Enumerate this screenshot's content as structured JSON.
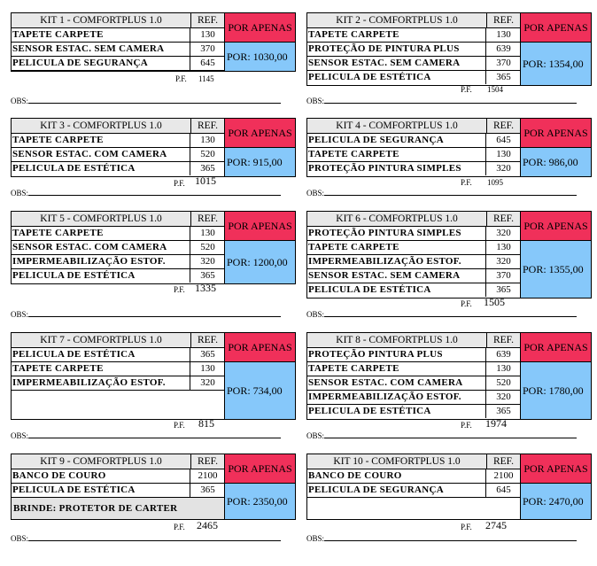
{
  "kits": [
    {
      "title": "KIT 1 -  COMFORTPLUS 1.0",
      "ref_header": "REF.",
      "badge": "POR APENAS",
      "items": [
        {
          "name": "TAPETE CARPETE",
          "ref": "130"
        },
        {
          "name": "SENSOR ESTAC. SEM CAMERA",
          "ref": "370"
        },
        {
          "name": "PELICULA DE SEGURANÇA",
          "ref": "645"
        }
      ],
      "price": "POR:  1030,00",
      "pf_label": "P.F.",
      "pf_value": "1145",
      "obs_label": "OBS:"
    },
    {
      "title": "KIT 2 -  COMFORTPLUS 1.0",
      "ref_header": "REF.",
      "badge": "POR APENAS",
      "items": [
        {
          "name": "TAPETE CARPETE",
          "ref": "130"
        },
        {
          "name": "PROTEÇÃO DE PINTURA PLUS",
          "ref": "639"
        },
        {
          "name": "SENSOR ESTAC. SEM CAMERA",
          "ref": "370"
        },
        {
          "name": "PELICULA DE ESTÉTICA",
          "ref": "365"
        }
      ],
      "price": "POR:  1354,00",
      "pf_label": "P.F.",
      "pf_value": "1504",
      "obs_label": "OBS:"
    },
    {
      "title": "KIT 3 -  COMFORTPLUS 1.0",
      "ref_header": "REF.",
      "badge": "POR APENAS",
      "items": [
        {
          "name": "TAPETE CARPETE",
          "ref": "130"
        },
        {
          "name": "SENSOR ESTAC. COM CAMERA",
          "ref": "520"
        },
        {
          "name": "PELICULA DE ESTÉTICA",
          "ref": "365"
        }
      ],
      "price": "POR:  915,00",
      "pf_label": "P.F.",
      "pf_value": "1015",
      "obs_label": "OBS:"
    },
    {
      "title": "KIT 4 -  COMFORTPLUS 1.0",
      "ref_header": "REF.",
      "badge": "POR APENAS",
      "items": [
        {
          "name": "PELICULA DE SEGURANÇA",
          "ref": "645"
        },
        {
          "name": "TAPETE CARPETE",
          "ref": "130"
        },
        {
          "name": "PROTEÇÃO PINTURA SIMPLES",
          "ref": "320"
        }
      ],
      "price": "POR:  986,00",
      "pf_label": "P.F.",
      "pf_value": "1095",
      "obs_label": "OBS:"
    },
    {
      "title": "KIT 5 -  COMFORTPLUS 1.0",
      "ref_header": "REF.",
      "badge": "POR APENAS",
      "items": [
        {
          "name": "TAPETE CARPETE",
          "ref": "130"
        },
        {
          "name": "SENSOR ESTAC. COM CAMERA",
          "ref": "520"
        },
        {
          "name": "IMPERMEABILIZAÇÃO ESTOF.",
          "ref": "320"
        },
        {
          "name": "PELICULA DE ESTÉTICA",
          "ref": "365"
        }
      ],
      "price": "POR:  1200,00",
      "pf_label": "P.F.",
      "pf_value": "1335",
      "obs_label": "OBS:"
    },
    {
      "title": "KIT 6 -  COMFORTPLUS 1.0",
      "ref_header": "REF.",
      "badge": "POR APENAS",
      "items": [
        {
          "name": "PROTEÇÃO PINTURA SIMPLES",
          "ref": "320"
        },
        {
          "name": "TAPETE CARPETE",
          "ref": "130"
        },
        {
          "name": "IMPERMEABILIZAÇÃO ESTOF.",
          "ref": "320"
        },
        {
          "name": "SENSOR ESTAC. SEM CAMERA",
          "ref": "370"
        },
        {
          "name": "PELICULA DE ESTÉTICA",
          "ref": "365"
        }
      ],
      "price": "POR:  1355,00",
      "pf_label": "P.F.",
      "pf_value": "1505",
      "obs_label": "OBS:"
    },
    {
      "title": "KIT 7 -  COMFORTPLUS 1.0",
      "ref_header": "REF.",
      "badge": "POR APENAS",
      "items": [
        {
          "name": "PELICULA DE ESTÉTICA",
          "ref": "365"
        },
        {
          "name": "TAPETE CARPETE",
          "ref": "130"
        },
        {
          "name": "IMPERMEABILIZAÇÃO ESTOF.",
          "ref": "320"
        }
      ],
      "price": "POR:  734,00",
      "pf_label": "P.F.",
      "pf_value": "815",
      "obs_label": "OBS:"
    },
    {
      "title": "KIT 8 -  COMFORTPLUS 1.0",
      "ref_header": "REF.",
      "badge": "POR APENAS",
      "items": [
        {
          "name": "PROTEÇÃO PINTURA PLUS",
          "ref": "639"
        },
        {
          "name": "TAPETE CARPETE",
          "ref": "130"
        },
        {
          "name": "SENSOR ESTAC. COM CAMERA",
          "ref": "520"
        },
        {
          "name": "IMPERMEABILIZAÇÃO ESTOF.",
          "ref": "320"
        },
        {
          "name": "PELICULA DE ESTÉTICA",
          "ref": "365"
        }
      ],
      "price": "POR:  1780,00",
      "pf_label": "P.F.",
      "pf_value": "1974",
      "obs_label": "OBS:"
    },
    {
      "title": "KIT 9 -  COMFORTPLUS 1.0",
      "ref_header": "REF.",
      "badge": "POR APENAS",
      "items": [
        {
          "name": "BANCO DE COURO",
          "ref": "2100"
        },
        {
          "name": "PELICULA DE ESTÉTICA",
          "ref": "365"
        }
      ],
      "brinde": "BRINDE: PROTETOR DE CARTER",
      "price": "POR:  2350,00",
      "pf_label": "P.F.",
      "pf_value": "2465",
      "obs_label": "OBS:"
    },
    {
      "title": "KIT 10 -  COMFORTPLUS 1.0",
      "ref_header": "REF.",
      "badge": "POR APENAS",
      "items": [
        {
          "name": "BANCO DE COURO",
          "ref": "2100"
        },
        {
          "name": "PELICULA DE SEGURANÇA",
          "ref": "645"
        }
      ],
      "price": "POR:  2470,00",
      "pf_label": "P.F.",
      "pf_value": "2745",
      "obs_label": "OBS:"
    }
  ]
}
